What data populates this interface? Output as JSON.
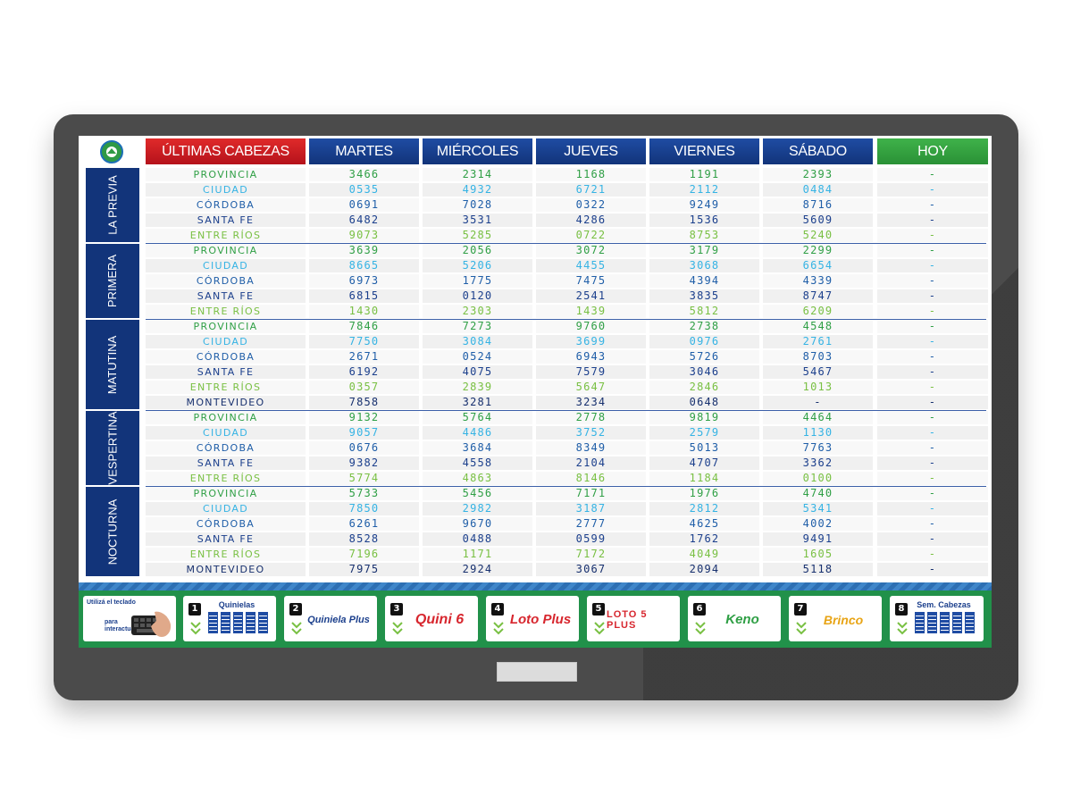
{
  "header": {
    "title": "ÚLTIMAS CABEZAS",
    "days": [
      "MARTES",
      "MIÉRCOLES",
      "JUEVES",
      "VIERNES",
      "SÁBADO",
      "HOY"
    ]
  },
  "sections": [
    {
      "label": "LA PREVIA",
      "rows": [
        {
          "name": "PROVINCIA",
          "values": [
            "3466",
            "2314",
            "1168",
            "1191",
            "2393",
            "-"
          ]
        },
        {
          "name": "CIUDAD",
          "values": [
            "0535",
            "4932",
            "6721",
            "2112",
            "0484",
            "-"
          ]
        },
        {
          "name": "CÓRDOBA",
          "values": [
            "0691",
            "7028",
            "0322",
            "9249",
            "8716",
            "-"
          ]
        },
        {
          "name": "SANTA FE",
          "values": [
            "6482",
            "3531",
            "4286",
            "1536",
            "5609",
            "-"
          ]
        },
        {
          "name": "ENTRE RÍOS",
          "values": [
            "9073",
            "5285",
            "0722",
            "8753",
            "5240",
            "-"
          ]
        }
      ]
    },
    {
      "label": "PRIMERA",
      "rows": [
        {
          "name": "PROVINCIA",
          "values": [
            "3639",
            "2056",
            "3072",
            "3179",
            "2299",
            "-"
          ]
        },
        {
          "name": "CIUDAD",
          "values": [
            "8665",
            "5206",
            "4455",
            "3068",
            "6654",
            "-"
          ]
        },
        {
          "name": "CÓRDOBA",
          "values": [
            "6973",
            "1775",
            "7475",
            "4394",
            "4339",
            "-"
          ]
        },
        {
          "name": "SANTA FE",
          "values": [
            "6815",
            "0120",
            "2541",
            "3835",
            "8747",
            "-"
          ]
        },
        {
          "name": "ENTRE RÍOS",
          "values": [
            "1430",
            "2303",
            "1439",
            "5812",
            "6209",
            "-"
          ]
        }
      ]
    },
    {
      "label": "MATUTINA",
      "rows": [
        {
          "name": "PROVINCIA",
          "values": [
            "7846",
            "7273",
            "9760",
            "2738",
            "4548",
            "-"
          ]
        },
        {
          "name": "CIUDAD",
          "values": [
            "7750",
            "3084",
            "3699",
            "0976",
            "2761",
            "-"
          ]
        },
        {
          "name": "CÓRDOBA",
          "values": [
            "2671",
            "0524",
            "6943",
            "5726",
            "8703",
            "-"
          ]
        },
        {
          "name": "SANTA FE",
          "values": [
            "6192",
            "4075",
            "7579",
            "3046",
            "5467",
            "-"
          ]
        },
        {
          "name": "ENTRE RÍOS",
          "values": [
            "0357",
            "2839",
            "5647",
            "2846",
            "1013",
            "-"
          ]
        },
        {
          "name": "MONTEVIDEO",
          "values": [
            "7858",
            "3281",
            "3234",
            "0648",
            "-",
            "-"
          ]
        }
      ]
    },
    {
      "label": "VESPERTINA",
      "rows": [
        {
          "name": "PROVINCIA",
          "values": [
            "9132",
            "5764",
            "2778",
            "9819",
            "4464",
            "-"
          ]
        },
        {
          "name": "CIUDAD",
          "values": [
            "9057",
            "4486",
            "3752",
            "2579",
            "1130",
            "-"
          ]
        },
        {
          "name": "CÓRDOBA",
          "values": [
            "0676",
            "3684",
            "8349",
            "5013",
            "7763",
            "-"
          ]
        },
        {
          "name": "SANTA FE",
          "values": [
            "9382",
            "4558",
            "2104",
            "4707",
            "3362",
            "-"
          ]
        },
        {
          "name": "ENTRE RÍOS",
          "values": [
            "5774",
            "4863",
            "8146",
            "1184",
            "0100",
            "-"
          ]
        }
      ]
    },
    {
      "label": "NOCTURNA",
      "rows": [
        {
          "name": "PROVINCIA",
          "values": [
            "5733",
            "5456",
            "7171",
            "1976",
            "4740",
            "-"
          ]
        },
        {
          "name": "CIUDAD",
          "values": [
            "7850",
            "2982",
            "3187",
            "2812",
            "5341",
            "-"
          ]
        },
        {
          "name": "CÓRDOBA",
          "values": [
            "6261",
            "9670",
            "2777",
            "4625",
            "4002",
            "-"
          ]
        },
        {
          "name": "SANTA FE",
          "values": [
            "8528",
            "0488",
            "0599",
            "1762",
            "9491",
            "-"
          ]
        },
        {
          "name": "ENTRE RÍOS",
          "values": [
            "7196",
            "1171",
            "7172",
            "4049",
            "1605",
            "-"
          ]
        },
        {
          "name": "MONTEVIDEO",
          "values": [
            "7975",
            "2924",
            "3067",
            "2094",
            "5118",
            "-"
          ]
        }
      ]
    }
  ],
  "footer": {
    "keyboard_hint_line1": "Utilizá el teclado",
    "keyboard_hint_line2": "para",
    "keyboard_hint_line3": "interactuar",
    "tiles": [
      {
        "number": "1",
        "label": "Quinielas"
      },
      {
        "number": "2",
        "label": "Quiniela Plus"
      },
      {
        "number": "3",
        "label": "Quini 6"
      },
      {
        "number": "4",
        "label": "Loto Plus"
      },
      {
        "number": "5",
        "label": "LOTO 5 PLUS"
      },
      {
        "number": "6",
        "label": "Keno"
      },
      {
        "number": "7",
        "label": "Brinco"
      },
      {
        "number": "8",
        "label": "Sem. Cabezas"
      }
    ]
  },
  "colors": {
    "header_red": "#c81a22",
    "header_blue": "#173f8f",
    "header_green": "#2fa23d",
    "footer_green": "#21914a",
    "provincia": "#2f9f45",
    "ciudad": "#35b3e4",
    "cordoba": "#1f5ea8",
    "santa_fe": "#1b3f8c",
    "entre_rios": "#79c043",
    "montevideo": "#17306e"
  }
}
